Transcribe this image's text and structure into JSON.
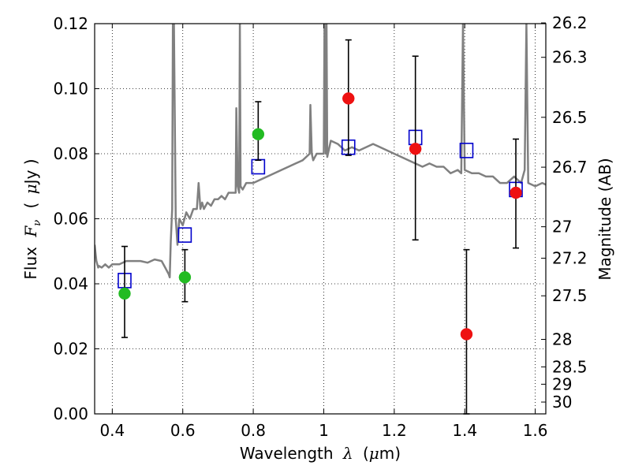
{
  "chart_data": {
    "type": "scatter",
    "xlabel_text": "Wavelength",
    "xlabel_symbol": "λ",
    "xlabel_unit_open": "(",
    "xlabel_unit_mu": "μ",
    "xlabel_unit_rest": "m)",
    "ylabel_text": "Flux",
    "ylabel_symbol": "F",
    "ylabel_sub": "ν",
    "ylabel_unit_open": "(",
    "ylabel_unit_mu": "μ",
    "ylabel_unit_rest": "Jy )",
    "y2label": "Magnitude (AB)",
    "xlim": [
      0.35,
      1.63
    ],
    "ylim": [
      0.0,
      0.12
    ],
    "grid": true,
    "x_ticks": [
      0.4,
      0.6,
      0.8,
      1.0,
      1.2,
      1.4,
      1.6
    ],
    "x_tick_labels": [
      "0.4",
      "0.6",
      "0.8",
      "1",
      "1.2",
      "1.4",
      "1.6"
    ],
    "y_ticks": [
      0.0,
      0.02,
      0.04,
      0.06,
      0.08,
      0.1,
      0.12
    ],
    "y_tick_labels": [
      "0.00",
      "0.02",
      "0.04",
      "0.06",
      "0.08",
      "0.10",
      "0.12"
    ],
    "mag_ticks": [
      26.2,
      26.3,
      26.5,
      26.7,
      27,
      27.2,
      27.5,
      28,
      28.5,
      29,
      30
    ],
    "mag_tick_labels": [
      "26.2",
      "26.3",
      "26.5",
      "26.7",
      "27",
      "27.2",
      "27.5",
      "28",
      "28.5",
      "29",
      "30"
    ],
    "series": [
      {
        "name": "model-spectrum",
        "style": "line",
        "color": "#808080",
        "x": [
          0.35,
          0.355,
          0.36,
          0.362,
          0.37,
          0.38,
          0.39,
          0.4,
          0.42,
          0.44,
          0.46,
          0.48,
          0.5,
          0.52,
          0.54,
          0.55,
          0.56,
          0.563,
          0.566,
          0.57,
          0.572,
          0.575,
          0.58,
          0.585,
          0.59,
          0.6,
          0.61,
          0.62,
          0.63,
          0.64,
          0.645,
          0.65,
          0.655,
          0.66,
          0.67,
          0.68,
          0.69,
          0.7,
          0.71,
          0.72,
          0.73,
          0.74,
          0.75,
          0.752,
          0.756,
          0.76,
          0.762,
          0.764,
          0.77,
          0.78,
          0.8,
          0.82,
          0.84,
          0.86,
          0.88,
          0.9,
          0.92,
          0.94,
          0.96,
          0.962,
          0.966,
          0.97,
          0.975,
          0.98,
          1.0,
          1.002,
          1.006,
          1.008,
          1.01,
          1.02,
          1.04,
          1.06,
          1.08,
          1.1,
          1.12,
          1.14,
          1.16,
          1.18,
          1.2,
          1.22,
          1.24,
          1.26,
          1.28,
          1.3,
          1.32,
          1.34,
          1.36,
          1.38,
          1.39,
          1.395,
          1.4,
          1.42,
          1.44,
          1.46,
          1.48,
          1.5,
          1.52,
          1.54,
          1.56,
          1.57,
          1.575,
          1.58,
          1.6,
          1.62,
          1.63
        ],
        "y": [
          0.052,
          0.047,
          0.045,
          0.0455,
          0.045,
          0.046,
          0.045,
          0.046,
          0.046,
          0.047,
          0.047,
          0.047,
          0.0465,
          0.0475,
          0.047,
          0.045,
          0.043,
          0.042,
          0.053,
          0.063,
          0.12,
          0.12,
          0.06,
          0.052,
          0.06,
          0.058,
          0.062,
          0.06,
          0.063,
          0.063,
          0.071,
          0.063,
          0.065,
          0.063,
          0.065,
          0.064,
          0.066,
          0.066,
          0.067,
          0.066,
          0.068,
          0.068,
          0.068,
          0.094,
          0.07,
          0.068,
          0.12,
          0.07,
          0.069,
          0.071,
          0.071,
          0.072,
          0.073,
          0.074,
          0.075,
          0.076,
          0.077,
          0.078,
          0.08,
          0.095,
          0.08,
          0.078,
          0.079,
          0.08,
          0.08,
          0.12,
          0.08,
          0.12,
          0.079,
          0.084,
          0.083,
          0.081,
          0.082,
          0.081,
          0.082,
          0.083,
          0.082,
          0.081,
          0.08,
          0.079,
          0.078,
          0.077,
          0.076,
          0.077,
          0.076,
          0.076,
          0.074,
          0.075,
          0.074,
          0.12,
          0.075,
          0.074,
          0.074,
          0.073,
          0.073,
          0.071,
          0.071,
          0.073,
          0.071,
          0.075,
          0.12,
          0.071,
          0.07,
          0.071,
          0.0705
        ]
      },
      {
        "name": "model-photometry",
        "style": "open-square",
        "color": "#0000cc",
        "x": [
          0.435,
          0.606,
          0.814,
          1.07,
          1.26,
          1.405,
          1.545
        ],
        "y": [
          0.041,
          0.055,
          0.076,
          0.082,
          0.085,
          0.081,
          0.069
        ]
      },
      {
        "name": "optical-detections",
        "style": "filled-circle",
        "color": "#22bb22",
        "x": [
          0.435,
          0.606,
          0.814
        ],
        "y": [
          0.037,
          0.042,
          0.086
        ],
        "yerr_low": [
          0.0235,
          0.0345,
          0.078
        ],
        "yerr_high": [
          0.0515,
          0.0505,
          0.096
        ]
      },
      {
        "name": "nir-detections",
        "style": "filled-circle",
        "color": "#ee1111",
        "x": [
          1.07,
          1.26,
          1.405,
          1.545
        ],
        "y": [
          0.097,
          0.0815,
          0.0245,
          0.068
        ],
        "yerr_low": [
          0.0795,
          0.0535,
          0.0,
          0.051
        ],
        "yerr_high": [
          0.115,
          0.11,
          0.0505,
          0.0845
        ]
      }
    ]
  }
}
